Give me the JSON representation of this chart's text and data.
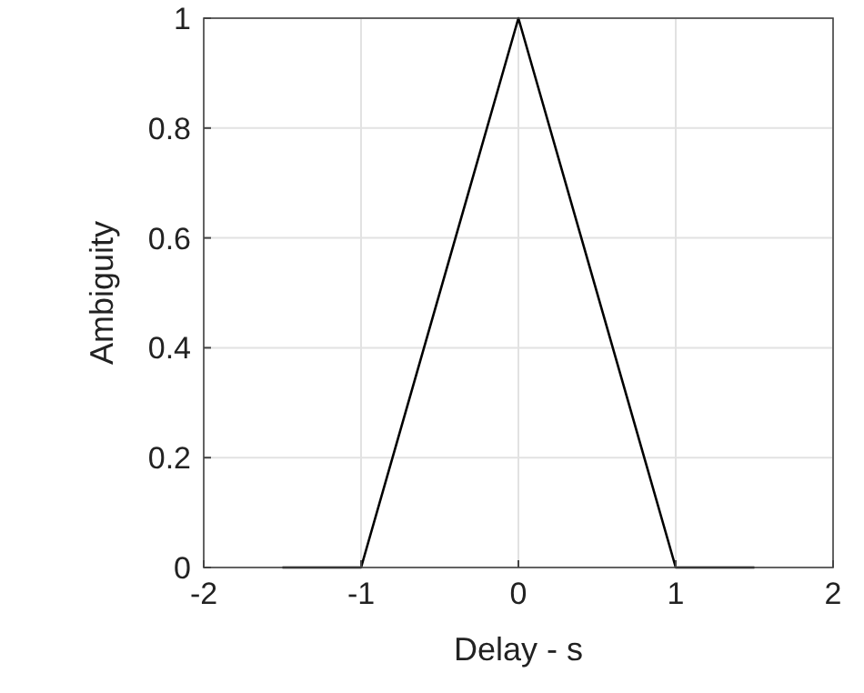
{
  "chart_data": {
    "type": "line",
    "xlabel": "Delay - s",
    "ylabel": "Ambiguity",
    "x": [
      -1.5,
      -1,
      0,
      1,
      1.5
    ],
    "series": [
      {
        "color": "#000000",
        "values": [
          0,
          0,
          1,
          0,
          0
        ]
      }
    ],
    "xlim": [
      -2,
      2
    ],
    "xticks": [
      -2,
      -1,
      0,
      1,
      2
    ],
    "ylim": [
      0,
      1
    ],
    "yticks": [
      0,
      0.2,
      0.4,
      0.6,
      0.8,
      1
    ],
    "grid": true,
    "marker": "none",
    "line_style": "solid"
  }
}
